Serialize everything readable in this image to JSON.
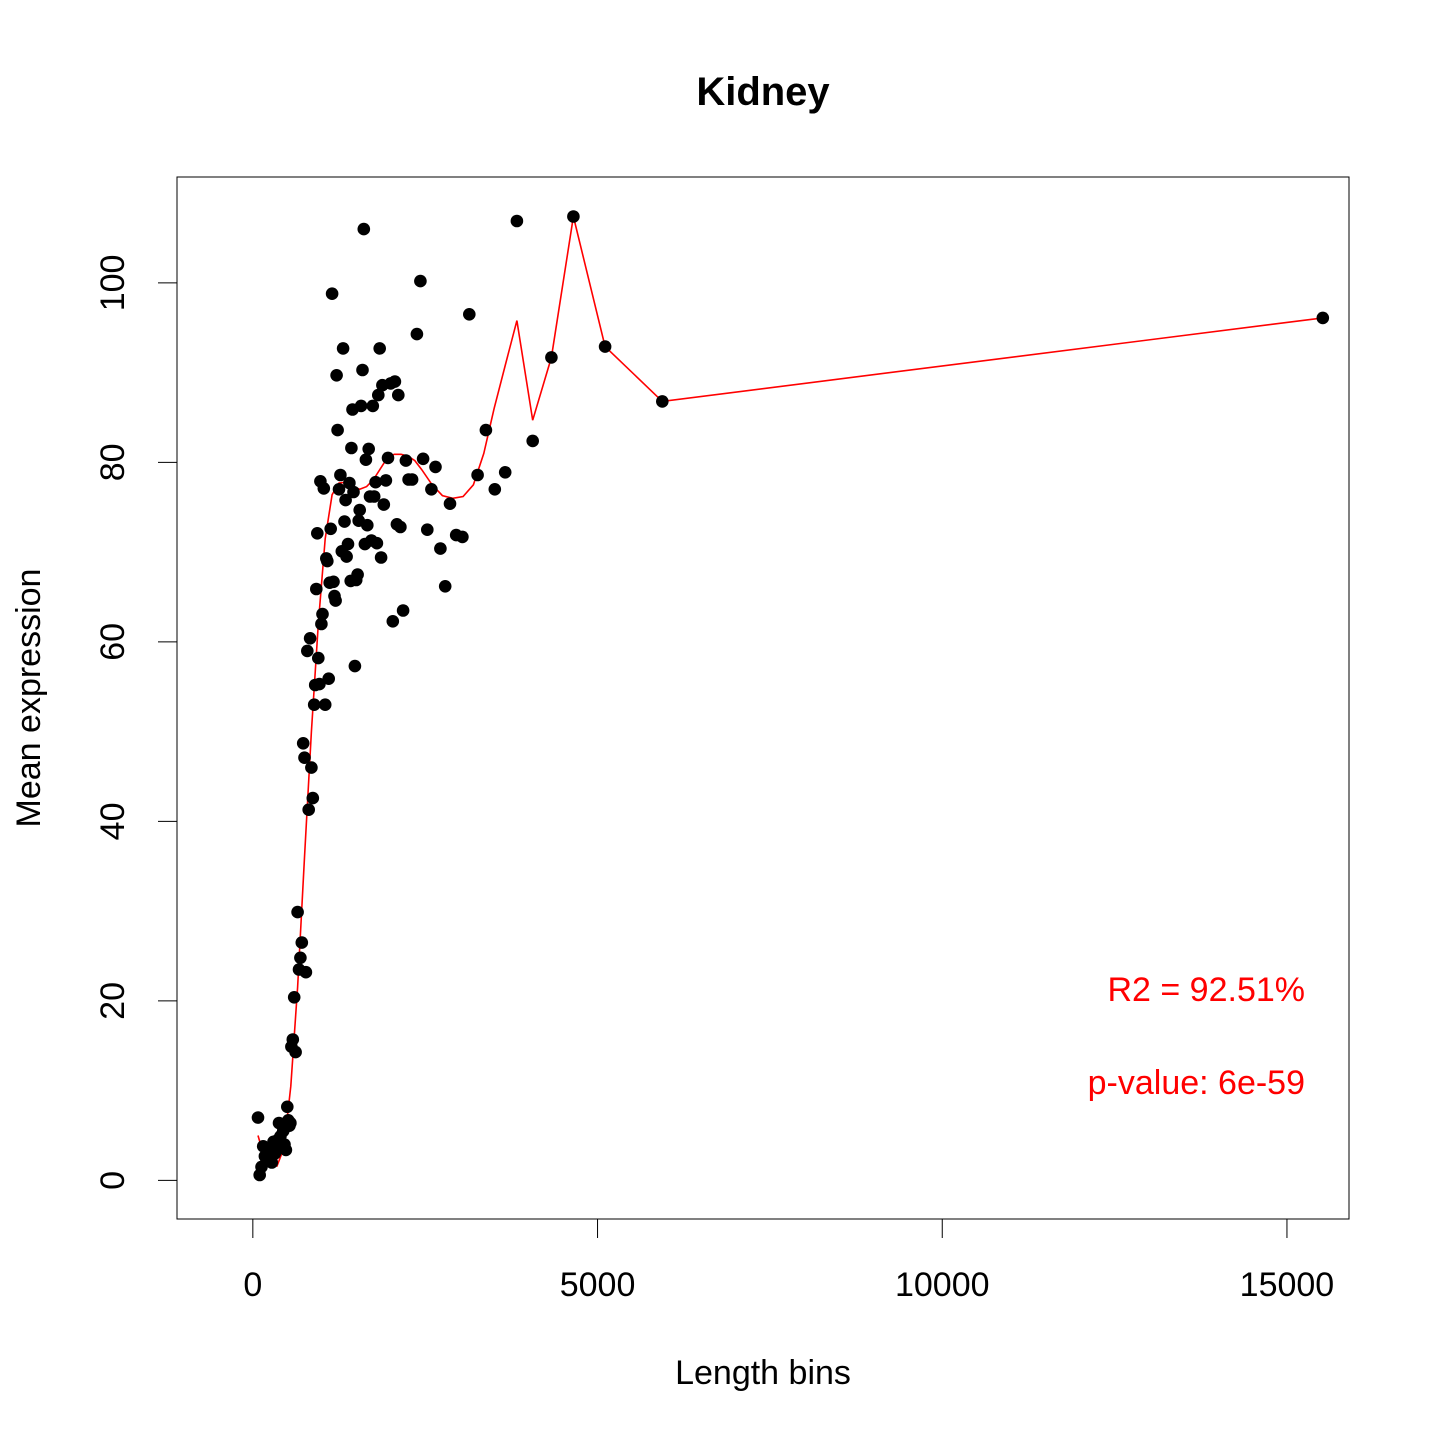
{
  "chart_data": {
    "type": "scatter",
    "title": "Kidney",
    "xlabel": "Length bins",
    "ylabel": "Mean expression",
    "xlim": [
      -1100,
      15900
    ],
    "ylim": [
      -4.3,
      111.8
    ],
    "x_ticks": [
      0,
      5000,
      10000,
      15000
    ],
    "y_ticks": [
      0,
      20,
      40,
      60,
      80,
      100
    ],
    "x_tick_labels": [
      "0",
      "5000",
      "10000",
      "15000"
    ],
    "y_tick_labels": [
      "0",
      "20",
      "40",
      "60",
      "80",
      "100"
    ],
    "grid": false,
    "legend": "none",
    "colors": {
      "points": "#000000",
      "fit_line": "#ff0000",
      "annotation": "#ff0000",
      "frame": "#000000"
    },
    "annotations": {
      "r2": "R2 = 92.51%",
      "pvalue": "p-value: 6e-59"
    },
    "points": [
      [
        75,
        7.0
      ],
      [
        100,
        0.6
      ],
      [
        125,
        1.5
      ],
      [
        150,
        3.8
      ],
      [
        175,
        2.7
      ],
      [
        200,
        2.2
      ],
      [
        225,
        3.4
      ],
      [
        250,
        2.5
      ],
      [
        275,
        2.0
      ],
      [
        300,
        4.3
      ],
      [
        320,
        3.0
      ],
      [
        340,
        3.8
      ],
      [
        360,
        4.5
      ],
      [
        380,
        6.4
      ],
      [
        400,
        4.9
      ],
      [
        420,
        3.9
      ],
      [
        440,
        5.5
      ],
      [
        460,
        4.0
      ],
      [
        480,
        3.4
      ],
      [
        500,
        8.2
      ],
      [
        515,
        6.7
      ],
      [
        530,
        6.1
      ],
      [
        545,
        6.4
      ],
      [
        560,
        14.9
      ],
      [
        580,
        15.7
      ],
      [
        600,
        20.4
      ],
      [
        620,
        14.3
      ],
      [
        650,
        29.9
      ],
      [
        670,
        23.5
      ],
      [
        690,
        24.8
      ],
      [
        710,
        26.5
      ],
      [
        730,
        48.7
      ],
      [
        750,
        47.1
      ],
      [
        770,
        23.2
      ],
      [
        790,
        59.0
      ],
      [
        810,
        41.3
      ],
      [
        830,
        60.4
      ],
      [
        850,
        46.0
      ],
      [
        870,
        42.6
      ],
      [
        890,
        53.0
      ],
      [
        905,
        55.2
      ],
      [
        920,
        65.9
      ],
      [
        935,
        72.1
      ],
      [
        950,
        58.2
      ],
      [
        965,
        55.3
      ],
      [
        980,
        77.9
      ],
      [
        995,
        62.0
      ],
      [
        1010,
        63.1
      ],
      [
        1030,
        77.1
      ],
      [
        1050,
        53.0
      ],
      [
        1065,
        69.3
      ],
      [
        1080,
        69.0
      ],
      [
        1100,
        55.9
      ],
      [
        1115,
        66.6
      ],
      [
        1130,
        72.6
      ],
      [
        1150,
        98.8
      ],
      [
        1170,
        66.7
      ],
      [
        1185,
        65.1
      ],
      [
        1200,
        64.6
      ],
      [
        1215,
        89.7
      ],
      [
        1230,
        83.6
      ],
      [
        1250,
        77.0
      ],
      [
        1270,
        78.6
      ],
      [
        1290,
        70.1
      ],
      [
        1310,
        92.7
      ],
      [
        1330,
        73.4
      ],
      [
        1345,
        75.8
      ],
      [
        1360,
        69.5
      ],
      [
        1380,
        70.9
      ],
      [
        1400,
        77.7
      ],
      [
        1420,
        66.8
      ],
      [
        1430,
        81.6
      ],
      [
        1445,
        85.9
      ],
      [
        1460,
        76.7
      ],
      [
        1480,
        57.3
      ],
      [
        1500,
        66.9
      ],
      [
        1520,
        67.5
      ],
      [
        1535,
        73.5
      ],
      [
        1550,
        74.7
      ],
      [
        1570,
        86.3
      ],
      [
        1590,
        90.3
      ],
      [
        1610,
        106.0
      ],
      [
        1625,
        70.9
      ],
      [
        1640,
        80.3
      ],
      [
        1660,
        73.0
      ],
      [
        1680,
        81.5
      ],
      [
        1700,
        76.2
      ],
      [
        1720,
        71.3
      ],
      [
        1740,
        86.3
      ],
      [
        1760,
        76.2
      ],
      [
        1780,
        77.8
      ],
      [
        1800,
        71.0
      ],
      [
        1820,
        87.5
      ],
      [
        1840,
        92.7
      ],
      [
        1860,
        69.4
      ],
      [
        1880,
        88.6
      ],
      [
        1900,
        75.3
      ],
      [
        1930,
        78.0
      ],
      [
        1960,
        80.5
      ],
      [
        2000,
        88.8
      ],
      [
        2030,
        62.3
      ],
      [
        2060,
        89.0
      ],
      [
        2090,
        73.1
      ],
      [
        2110,
        87.5
      ],
      [
        2140,
        72.8
      ],
      [
        2180,
        63.5
      ],
      [
        2220,
        80.2
      ],
      [
        2260,
        78.1
      ],
      [
        2310,
        78.1
      ],
      [
        2380,
        94.3
      ],
      [
        2430,
        100.2
      ],
      [
        2470,
        80.4
      ],
      [
        2530,
        72.5
      ],
      [
        2590,
        77.0
      ],
      [
        2650,
        79.5
      ],
      [
        2720,
        70.4
      ],
      [
        2790,
        66.2
      ],
      [
        2860,
        75.4
      ],
      [
        2950,
        71.9
      ],
      [
        3040,
        71.7
      ],
      [
        3140,
        96.5
      ],
      [
        3260,
        78.6
      ],
      [
        3380,
        83.6
      ],
      [
        3510,
        77.0
      ],
      [
        3660,
        78.9
      ],
      [
        3830,
        106.9
      ],
      [
        4060,
        82.4
      ],
      [
        4330,
        91.7
      ],
      [
        4650,
        107.4
      ],
      [
        5110,
        92.9
      ],
      [
        5940,
        86.8
      ],
      [
        15520,
        96.1
      ]
    ],
    "fit_line": [
      [
        75,
        5.0
      ],
      [
        150,
        3.0
      ],
      [
        250,
        1.7
      ],
      [
        350,
        1.6
      ],
      [
        450,
        3.6
      ],
      [
        550,
        10.5
      ],
      [
        650,
        21.5
      ],
      [
        750,
        36.0
      ],
      [
        850,
        50.0
      ],
      [
        950,
        62.0
      ],
      [
        1050,
        71.5
      ],
      [
        1150,
        76.4
      ],
      [
        1250,
        77.7
      ],
      [
        1350,
        77.8
      ],
      [
        1450,
        77.3
      ],
      [
        1550,
        77.0
      ],
      [
        1650,
        77.3
      ],
      [
        1750,
        78.1
      ],
      [
        1850,
        79.3
      ],
      [
        1950,
        80.5
      ],
      [
        2050,
        80.9
      ],
      [
        2150,
        80.9
      ],
      [
        2250,
        80.7
      ],
      [
        2350,
        80.2
      ],
      [
        2450,
        79.2
      ],
      [
        2600,
        77.5
      ],
      [
        2750,
        76.3
      ],
      [
        2900,
        76.0
      ],
      [
        3050,
        76.2
      ],
      [
        3200,
        77.5
      ],
      [
        3350,
        81.0
      ],
      [
        3500,
        86.0
      ],
      [
        3660,
        90.8
      ],
      [
        3830,
        95.8
      ],
      [
        4060,
        84.7
      ],
      [
        4330,
        91.7
      ],
      [
        4650,
        107.4
      ],
      [
        5110,
        92.9
      ],
      [
        5940,
        86.8
      ],
      [
        15520,
        96.1
      ]
    ]
  }
}
